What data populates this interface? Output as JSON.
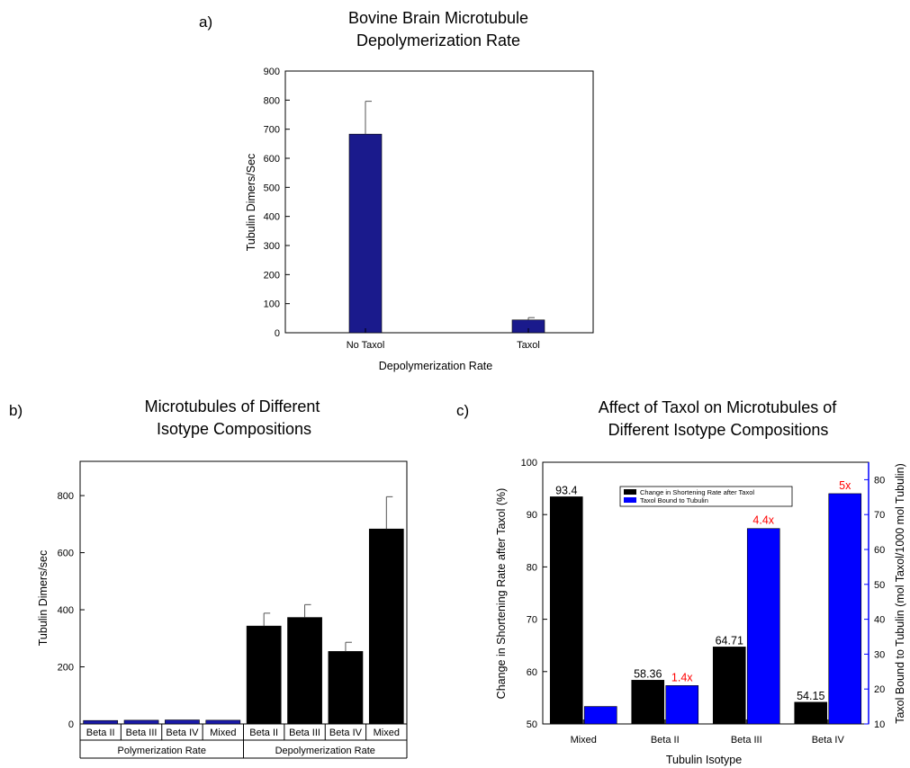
{
  "panels": {
    "a": {
      "label": "a)",
      "title_lines": [
        "Bovine Brain Microtubule",
        "Depolymerization Rate"
      ]
    },
    "b": {
      "label": "b)",
      "title_lines": [
        "Microtubules of Different",
        "Isotype Compositions"
      ]
    },
    "c": {
      "label": "c)",
      "title_lines": [
        "Affect of Taxol on Microtubules of",
        "Different Isotype Compositions"
      ]
    }
  },
  "chart_data": [
    {
      "id": "a",
      "type": "bar",
      "categories": [
        "No Taxol",
        "Taxol"
      ],
      "values": [
        683,
        44
      ],
      "errors": [
        113,
        8
      ],
      "xlabel": "Depolymerization Rate",
      "ylabel": "Tubulin Dimers/Sec",
      "ylim": [
        0,
        900
      ],
      "yticks": [
        0,
        100,
        200,
        300,
        400,
        500,
        600,
        700,
        800,
        900
      ],
      "bar_color": "#1a1a8c",
      "grid": false
    },
    {
      "id": "b",
      "type": "bar",
      "categories": [
        "Beta II",
        "Beta III",
        "Beta IV",
        "Mixed",
        "Beta II",
        "Beta III",
        "Beta IV",
        "Mixed"
      ],
      "groups": [
        {
          "label": "Polymerization Rate",
          "count": 4
        },
        {
          "label": "Depolymerization Rate",
          "count": 4
        }
      ],
      "values": [
        12,
        13,
        14,
        13,
        343,
        373,
        254,
        683
      ],
      "errors": [
        0,
        0,
        0,
        0,
        45,
        45,
        32,
        113
      ],
      "bar_colors": [
        "#1a1aa8",
        "#1a1aa8",
        "#1a1aa8",
        "#1a1aa8",
        "#000000",
        "#000000",
        "#000000",
        "#000000"
      ],
      "ylabel": "Tubulin Dimers/sec",
      "ylim": [
        0,
        920
      ],
      "yticks": [
        0,
        200,
        400,
        600,
        800
      ],
      "grid": false
    },
    {
      "id": "c",
      "type": "bar",
      "categories": [
        "Mixed",
        "Beta II",
        "Beta III",
        "Beta IV"
      ],
      "series": [
        {
          "name": "Change in Shortening Rate after Taxol",
          "axis": "left",
          "color": "#000000",
          "values": [
            93.4,
            58.36,
            64.71,
            54.15
          ],
          "labels": [
            "93.4",
            "58.36",
            "64.71",
            "54.15"
          ]
        },
        {
          "name": "Taxol Bound to Tubulin",
          "axis": "right",
          "color": "#0000ff",
          "values": [
            15,
            21,
            66,
            76
          ],
          "labels": [
            "",
            "1.4x",
            "4.4x",
            "5x"
          ]
        }
      ],
      "xlabel": "Tubulin Isotype",
      "ylabel": "Change in Shortening Rate after Taxol (%)",
      "ylabel_right": "Taxol Bound to Tubulin (mol Taxol/1000 mol Tubulin)",
      "ylim": [
        50,
        100
      ],
      "yticks": [
        50,
        60,
        70,
        80,
        90,
        100
      ],
      "ylim_right": [
        10,
        85
      ],
      "yticks_right": [
        10,
        20,
        30,
        40,
        50,
        60,
        70,
        80
      ],
      "legend_position": "top-center",
      "label_color": "#ff0000",
      "grid": false
    }
  ]
}
